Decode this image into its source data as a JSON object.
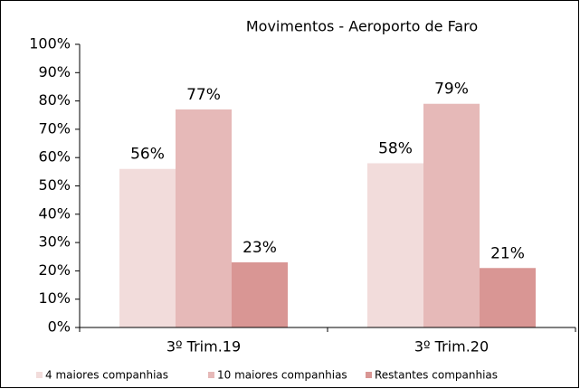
{
  "chart_data": {
    "type": "bar",
    "title": "Movimentos - Aeroporto de Faro",
    "categories": [
      "3º Trim.19",
      "3º Trim.20"
    ],
    "series": [
      {
        "name": "4 maiores companhias",
        "color": "#f2dcdb",
        "values": [
          56,
          58
        ],
        "value_labels": [
          "56%",
          "58%"
        ]
      },
      {
        "name": "10 maiores companhias",
        "color": "#e6b9b8",
        "values": [
          77,
          79
        ],
        "value_labels": [
          "77%",
          "79%"
        ]
      },
      {
        "name": "Restantes companhias",
        "color": "#d99694",
        "values": [
          23,
          21
        ],
        "value_labels": [
          "23%",
          "21%"
        ]
      }
    ],
    "ylim": [
      0,
      100
    ],
    "yticks": [
      {
        "value": 0,
        "label": "0%"
      },
      {
        "value": 10,
        "label": "10%"
      },
      {
        "value": 20,
        "label": "20%"
      },
      {
        "value": 30,
        "label": "30%"
      },
      {
        "value": 40,
        "label": "40%"
      },
      {
        "value": 50,
        "label": "50%"
      },
      {
        "value": 60,
        "label": "60%"
      },
      {
        "value": 70,
        "label": "70%"
      },
      {
        "value": 80,
        "label": "80%"
      },
      {
        "value": 90,
        "label": "90%"
      },
      {
        "value": 100,
        "label": "100%"
      }
    ],
    "legend": "bottom"
  }
}
